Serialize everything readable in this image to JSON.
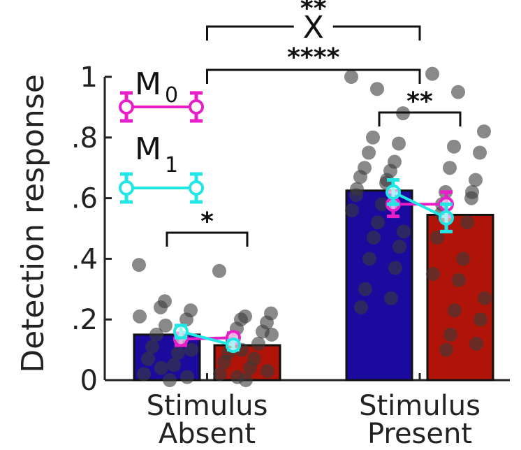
{
  "chart_data": {
    "type": "bar",
    "ylabel": "Detection response",
    "ylim": [
      0,
      1
    ],
    "yticks": [
      {
        "value": 0,
        "label": "0"
      },
      {
        "value": 0.2,
        "label": ".2"
      },
      {
        "value": 0.4,
        "label": ".4"
      },
      {
        "value": 0.6,
        "label": ".6"
      },
      {
        "value": 0.8,
        "label": ".8"
      },
      {
        "value": 1,
        "label": "1"
      }
    ],
    "categories": [
      {
        "line1": "Stimulus",
        "line2": "Absent"
      },
      {
        "line1": "Stimulus",
        "line2": "Present"
      }
    ],
    "colors": {
      "bar_a": "#1a0a9e",
      "bar_b": "#b01408",
      "m0": "#e81ec8",
      "m1": "#22e6e6",
      "dots": "#3a3a3a"
    },
    "bars": [
      {
        "group": 0,
        "side": 0,
        "value": 0.15
      },
      {
        "group": 0,
        "side": 1,
        "value": 0.115
      },
      {
        "group": 1,
        "side": 0,
        "value": 0.625
      },
      {
        "group": 1,
        "side": 1,
        "value": 0.545
      }
    ],
    "models": [
      {
        "key": "m0",
        "label": "M",
        "sub": "0",
        "points": [
          {
            "group": 0,
            "side": 0,
            "value": 0.135,
            "err": 0.02
          },
          {
            "group": 0,
            "side": 1,
            "value": 0.14,
            "err": 0.015
          },
          {
            "group": 1,
            "side": 0,
            "value": 0.58,
            "err": 0.04
          },
          {
            "group": 1,
            "side": 1,
            "value": 0.58,
            "err": 0.04
          }
        ]
      },
      {
        "key": "m1",
        "label": "M",
        "sub": "1",
        "points": [
          {
            "group": 0,
            "side": 0,
            "value": 0.16,
            "err": 0.02
          },
          {
            "group": 0,
            "side": 1,
            "value": 0.115,
            "err": 0.015
          },
          {
            "group": 1,
            "side": 0,
            "value": 0.62,
            "err": 0.04
          },
          {
            "group": 1,
            "side": 1,
            "value": 0.535,
            "err": 0.045
          }
        ]
      }
    ],
    "subject_points": [
      {
        "group": 0,
        "side": 0,
        "values": [
          0.38,
          0.26,
          0.23,
          0.24,
          0.2,
          0.15,
          0.14,
          0.11,
          0.09,
          0.07,
          0.05,
          0.02,
          0.0,
          0.21,
          0.18,
          0.1,
          0.04,
          0.01
        ]
      },
      {
        "group": 0,
        "side": 1,
        "values": [
          0.36,
          0.21,
          0.22,
          0.2,
          0.19,
          0.17,
          0.16,
          0.13,
          0.12,
          0.09,
          0.07,
          0.06,
          0.04,
          0.02,
          0.0,
          0.15,
          0.1,
          0.03,
          0.01
        ]
      },
      {
        "group": 1,
        "side": 0,
        "values": [
          1.0,
          0.96,
          0.88,
          0.8,
          0.78,
          0.75,
          0.72,
          0.7,
          0.69,
          0.67,
          0.65,
          0.61,
          0.58,
          0.56,
          0.52,
          0.49,
          0.47,
          0.44,
          0.4,
          0.37,
          0.3,
          0.27,
          0.24,
          0.66,
          0.63
        ]
      },
      {
        "group": 1,
        "side": 1,
        "values": [
          1.01,
          0.95,
          0.82,
          0.77,
          0.75,
          0.7,
          0.66,
          0.62,
          0.6,
          0.55,
          0.52,
          0.47,
          0.4,
          0.35,
          0.33,
          0.27,
          0.23,
          0.2,
          0.15,
          0.12,
          0.1,
          0.62,
          0.58
        ]
      }
    ],
    "annotations": [
      {
        "text": "*",
        "type": "within",
        "group": 0
      },
      {
        "text": "**",
        "type": "within",
        "group": 1
      },
      {
        "text": "****",
        "type": "across",
        "level": 1
      },
      {
        "text": "**",
        "type": "across",
        "level": 2,
        "marker": "X"
      }
    ]
  }
}
